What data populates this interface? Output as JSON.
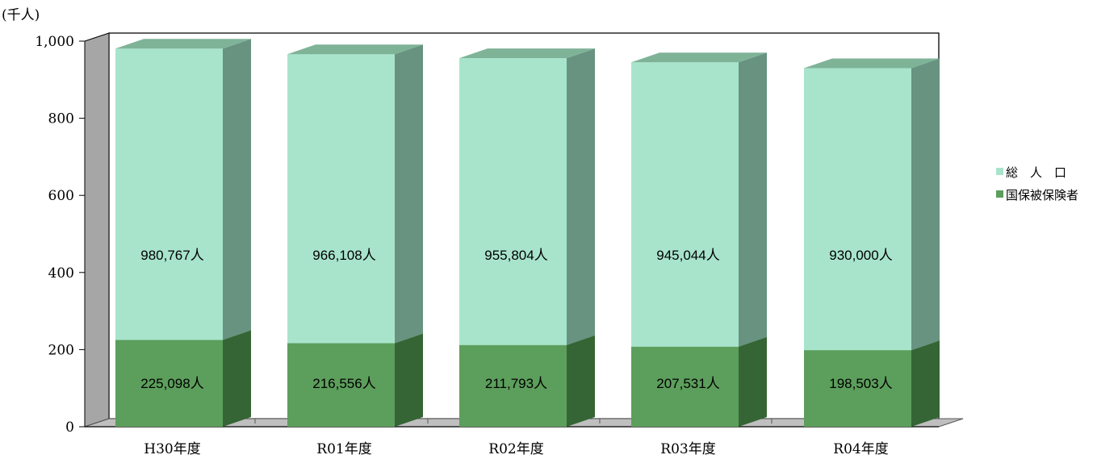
{
  "chart_data": {
    "type": "bar",
    "stacked": true,
    "three_d": true,
    "categories": [
      "H30年度",
      "R01年度",
      "R02年度",
      "R03年度",
      "R04年度"
    ],
    "series": [
      {
        "name": "国保被保険者",
        "values": [
          225.098,
          216.556,
          211.793,
          207.531,
          198.503
        ],
        "data_labels": [
          "225,098人",
          "216,556人",
          "211,793人",
          "207,531人",
          "198,503人"
        ],
        "color": "#5c9e5c"
      },
      {
        "name": "総　人　口",
        "totals": [
          980.767,
          966.108,
          955.804,
          945.044,
          930.0
        ],
        "data_labels": [
          "980,767人",
          "966,108人",
          "955,804人",
          "945,044人",
          "930,000人"
        ],
        "color": "#a8e4cc"
      }
    ],
    "y_unit": "(千人)",
    "y_ticks": [
      "0",
      "200",
      "400",
      "600",
      "800",
      "1,000"
    ],
    "ylim": [
      0,
      1000
    ],
    "legend": [
      "総　人　口",
      "国保被保険者"
    ],
    "legend_position": "right"
  }
}
